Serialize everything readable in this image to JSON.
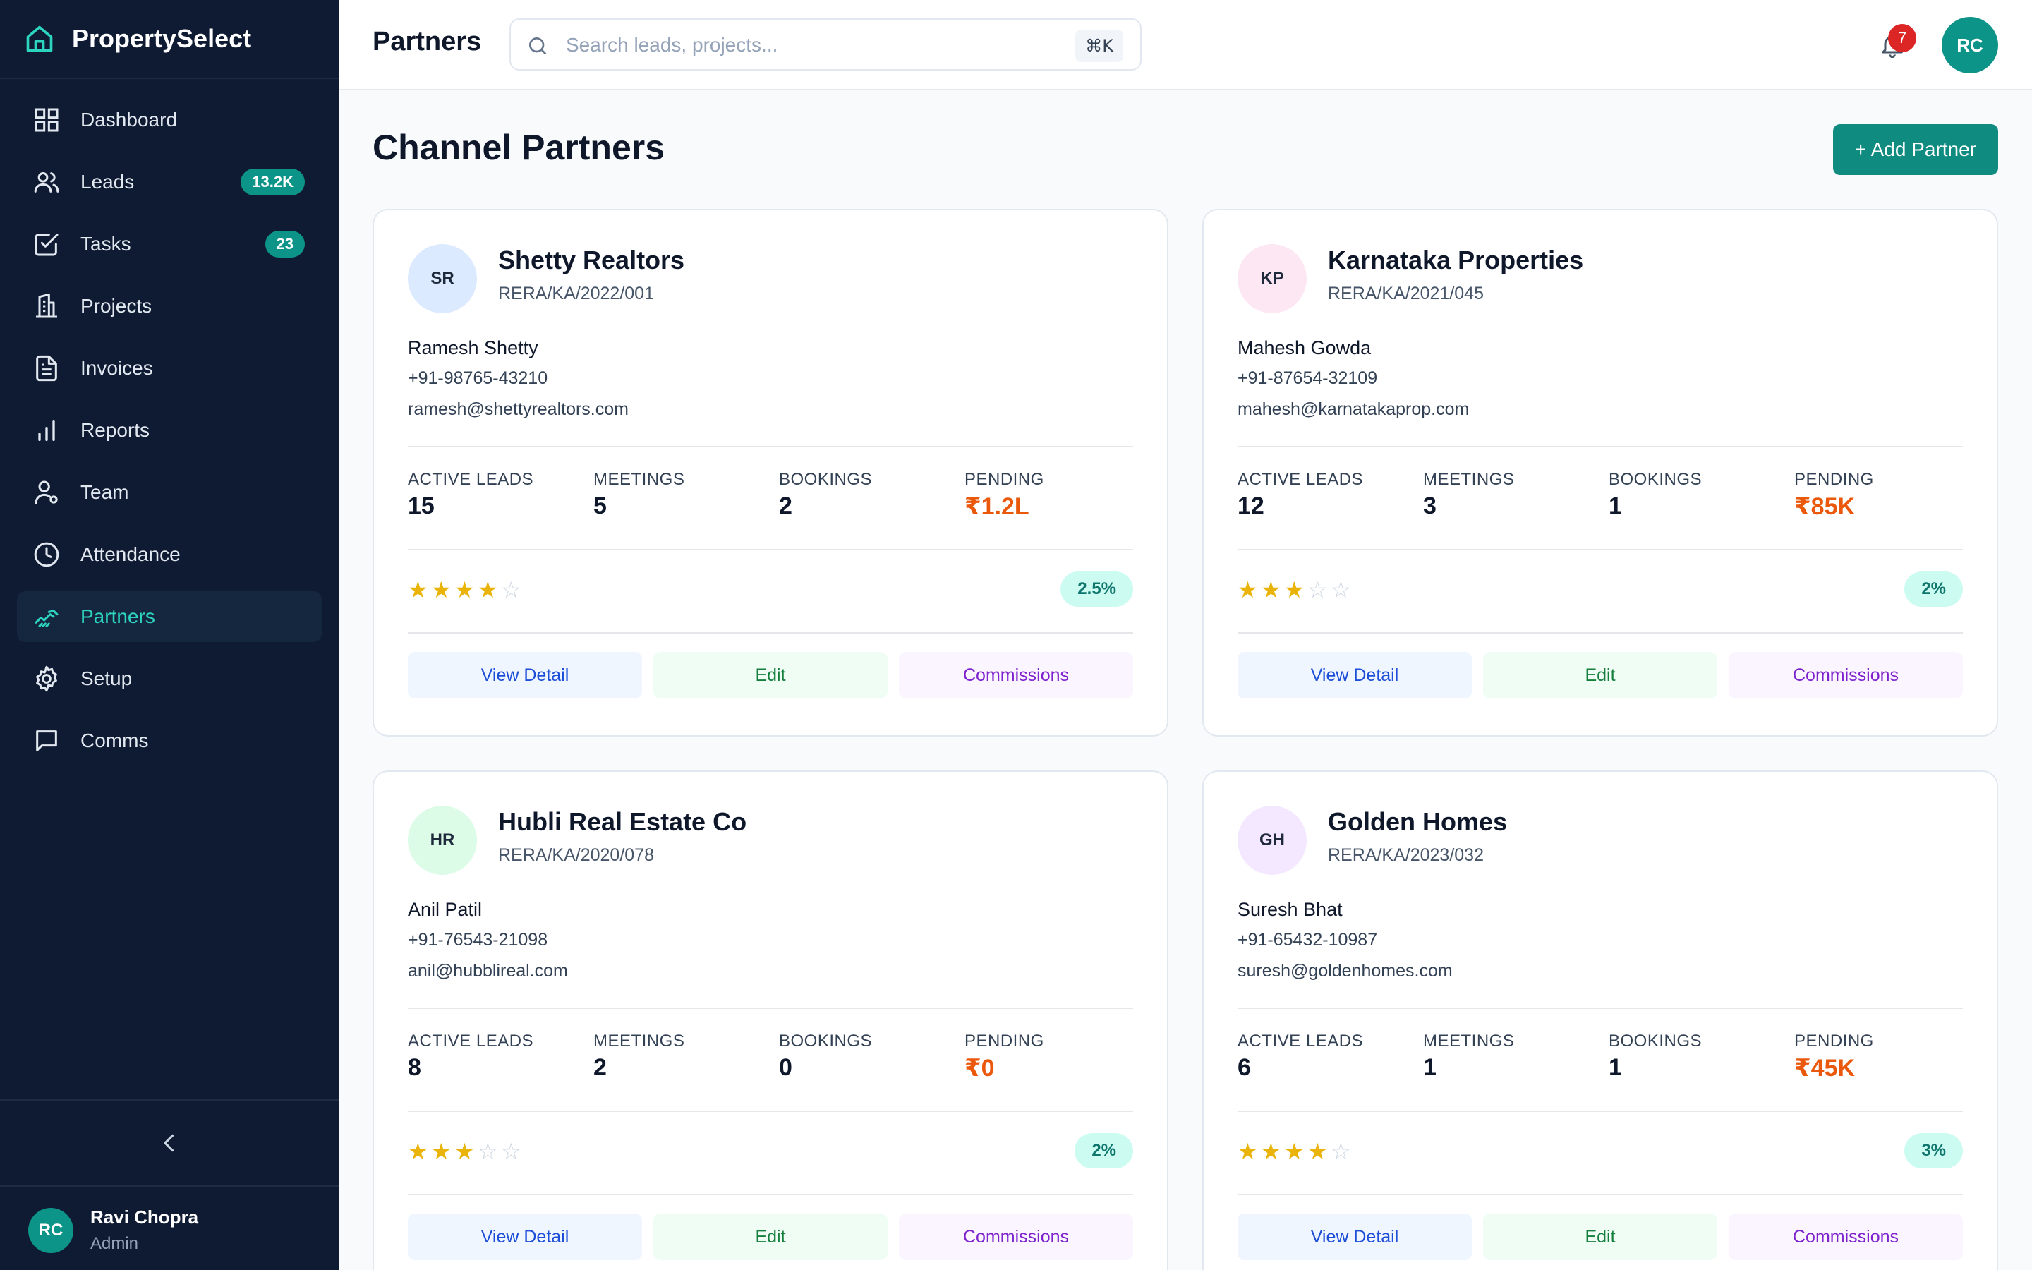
{
  "app": {
    "name": "PropertySelect"
  },
  "sidebar": {
    "items": [
      {
        "label": "Dashboard",
        "badge": ""
      },
      {
        "label": "Leads",
        "badge": "13.2K"
      },
      {
        "label": "Tasks",
        "badge": "23"
      },
      {
        "label": "Projects",
        "badge": ""
      },
      {
        "label": "Invoices",
        "badge": ""
      },
      {
        "label": "Reports",
        "badge": ""
      },
      {
        "label": "Team",
        "badge": ""
      },
      {
        "label": "Attendance",
        "badge": ""
      },
      {
        "label": "Partners",
        "badge": "",
        "active": true
      },
      {
        "label": "Setup",
        "badge": ""
      },
      {
        "label": "Comms",
        "badge": ""
      }
    ],
    "user": {
      "initials": "RC",
      "name": "Ravi Chopra",
      "role": "Admin"
    }
  },
  "header": {
    "title": "Partners",
    "search_placeholder": "Search leads, projects...",
    "search_value": "",
    "shortcut": "⌘K",
    "notification_count": "7",
    "avatar_initials": "RC"
  },
  "main": {
    "title": "Channel Partners",
    "add_button": "+ Add Partner",
    "stat_labels": {
      "leads": "ACTIVE LEADS",
      "meetings": "MEETINGS",
      "bookings": "BOOKINGS",
      "pending": "PENDING"
    },
    "actions": {
      "view": "View Detail",
      "edit": "Edit",
      "commissions": "Commissions"
    },
    "partners": [
      {
        "initials": "SR",
        "avatar_color": "#dbeafe",
        "name": "Shetty Realtors",
        "rera": "RERA/KA/2022/001",
        "contact": "Ramesh Shetty",
        "phone": "+91-98765-43210",
        "email": "ramesh@shettyrealtors.com",
        "active_leads": "15",
        "meetings": "5",
        "bookings": "2",
        "pending": "₹1.2L",
        "rating": 4,
        "commission": "2.5%"
      },
      {
        "initials": "KP",
        "avatar_color": "#fce7f3",
        "name": "Karnataka Properties",
        "rera": "RERA/KA/2021/045",
        "contact": "Mahesh Gowda",
        "phone": "+91-87654-32109",
        "email": "mahesh@karnatakaprop.com",
        "active_leads": "12",
        "meetings": "3",
        "bookings": "1",
        "pending": "₹85K",
        "rating": 3,
        "commission": "2%"
      },
      {
        "initials": "HR",
        "avatar_color": "#dcfce7",
        "name": "Hubli Real Estate Co",
        "rera": "RERA/KA/2020/078",
        "contact": "Anil Patil",
        "phone": "+91-76543-21098",
        "email": "anil@hubblireal.com",
        "active_leads": "8",
        "meetings": "2",
        "bookings": "0",
        "pending": "₹0",
        "rating": 3,
        "commission": "2%"
      },
      {
        "initials": "GH",
        "avatar_color": "#f3e8ff",
        "name": "Golden Homes",
        "rera": "RERA/KA/2023/032",
        "contact": "Suresh Bhat",
        "phone": "+91-65432-10987",
        "email": "suresh@goldenhomes.com",
        "active_leads": "6",
        "meetings": "1",
        "bookings": "1",
        "pending": "₹45K",
        "rating": 4,
        "commission": "3%"
      }
    ]
  }
}
